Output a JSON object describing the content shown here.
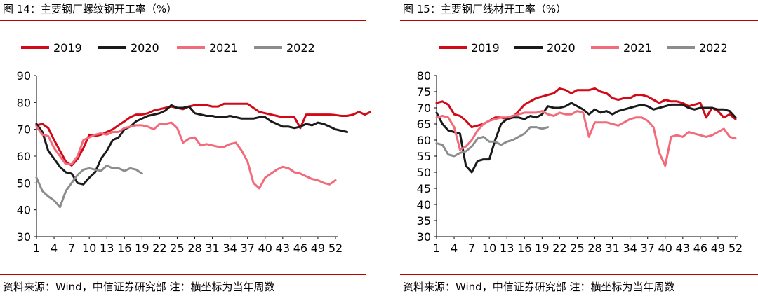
{
  "source_label": "资料来源：Wind，中信证券研究部",
  "note_label": "注：横坐标为当年周数",
  "chart_data": [
    {
      "type": "line",
      "title": "图 14：主要钢厂螺纹钢开工率（%）",
      "xticks": [
        "1",
        "4",
        "7",
        "10",
        "13",
        "16",
        "19",
        "22",
        "25",
        "28",
        "31",
        "34",
        "37",
        "40",
        "43",
        "46",
        "49",
        "52"
      ],
      "xlim": [
        1,
        52
      ],
      "ylim": [
        30,
        90
      ],
      "yticks": [
        30,
        40,
        50,
        60,
        70,
        80,
        90
      ],
      "legend_position": "top",
      "series": [
        {
          "name": "2019",
          "color": "#d20a18",
          "values": [
            71.5,
            72,
            70.5,
            66,
            62,
            58,
            56.5,
            59,
            63,
            68,
            67.5,
            68,
            69,
            70,
            71.5,
            73,
            74.5,
            75.5,
            75.5,
            76,
            77,
            77.5,
            78,
            78.5,
            78,
            77.5,
            78.5,
            79,
            79,
            79,
            78.5,
            78.5,
            79.5,
            79.5,
            79.5,
            79.5,
            79.5,
            78,
            76.5,
            76,
            75.5,
            75,
            74.5,
            74.5,
            74.5,
            70.5,
            75.5,
            75.5,
            75.5,
            75.5,
            75.5,
            75.3,
            75,
            75,
            75.5,
            76.5,
            75.5,
            76.5,
            76,
            75.5,
            74.5,
            74
          ]
        },
        {
          "name": "2020",
          "color": "#1a1a1a",
          "values": [
            72,
            69,
            62,
            59,
            56,
            54,
            53.5,
            50,
            49.5,
            52,
            54,
            59,
            62,
            66,
            67,
            70,
            71,
            73,
            74,
            75,
            75.5,
            76,
            77,
            79,
            78,
            78,
            78.5,
            76,
            75.5,
            75,
            75,
            74.5,
            74.5,
            75,
            74.5,
            74,
            74,
            74,
            74.5,
            74.5,
            73,
            72,
            71,
            71,
            70.5,
            71,
            72,
            71.5,
            72.5,
            72,
            71,
            70,
            69.5,
            69
          ]
        },
        {
          "name": "2021",
          "color": "#f26b7a",
          "values": [
            71,
            68,
            67.5,
            63,
            60,
            57,
            57,
            60,
            66,
            67,
            68,
            68.5,
            68,
            69,
            69,
            70.5,
            71,
            71.5,
            71.5,
            71,
            70,
            72,
            72,
            72.5,
            70.5,
            65,
            66.5,
            67,
            64,
            64.5,
            64,
            63.5,
            63.5,
            64.5,
            65,
            62,
            58,
            50,
            48,
            52,
            53.5,
            55,
            56,
            55.5,
            54,
            53.5,
            52.5,
            51.5,
            51,
            50,
            49.5,
            51
          ]
        },
        {
          "name": "2022",
          "color": "#8c8c8c",
          "values": [
            52,
            47,
            45,
            43.5,
            41,
            47,
            50,
            53,
            55,
            55.5,
            55,
            54.5,
            56.5,
            55.5,
            55.5,
            54.5,
            55.5,
            55,
            53.5
          ]
        }
      ]
    },
    {
      "type": "line",
      "title": "图 15：主要钢厂线材开工率（%）",
      "xticks": [
        "1",
        "4",
        "7",
        "10",
        "13",
        "16",
        "19",
        "22",
        "25",
        "28",
        "31",
        "34",
        "37",
        "40",
        "43",
        "46",
        "49",
        "52"
      ],
      "xlim": [
        1,
        52
      ],
      "ylim": [
        30,
        80
      ],
      "yticks": [
        30,
        35,
        40,
        45,
        50,
        55,
        60,
        65,
        70,
        75,
        80
      ],
      "legend_position": "top",
      "series": [
        {
          "name": "2019",
          "color": "#d20a18",
          "values": [
            71.5,
            72,
            71,
            68,
            67.5,
            66,
            64,
            64.5,
            65,
            66,
            67,
            67,
            66.5,
            67,
            69,
            71,
            72,
            73,
            73.5,
            74,
            74.5,
            76,
            75.5,
            74.5,
            75.5,
            75.5,
            75.5,
            76,
            75,
            74.5,
            73,
            72.5,
            73,
            73,
            74,
            74,
            73.5,
            72.5,
            71.5,
            72.5,
            72,
            72,
            71.5,
            70.5,
            71,
            71.5,
            67,
            70,
            69,
            67,
            68,
            66.5
          ]
        },
        {
          "name": "2020",
          "color": "#1a1a1a",
          "values": [
            68.5,
            65,
            63,
            62.5,
            62,
            52,
            50,
            53.5,
            54,
            54,
            60,
            65,
            66.5,
            67,
            67,
            66.5,
            67.5,
            67,
            68,
            70.5,
            70,
            70,
            70.5,
            71.5,
            70.5,
            69.5,
            68,
            69.5,
            68.5,
            69,
            68,
            69,
            69.5,
            70,
            70.5,
            71,
            70.5,
            69.5,
            70,
            70.5,
            71,
            71,
            71,
            70,
            69.5,
            70,
            70,
            70,
            69.5,
            69.5,
            69,
            67
          ]
        },
        {
          "name": "2021",
          "color": "#f26b7a",
          "values": [
            67,
            67.5,
            67,
            64,
            57,
            58,
            60,
            63,
            65,
            66,
            66.5,
            67,
            67,
            67.5,
            68,
            68.5,
            68.5,
            68.5,
            69,
            68,
            67.5,
            68.5,
            68,
            68,
            69,
            68.5,
            61,
            65.5,
            65.5,
            65.5,
            65,
            64.5,
            65.5,
            66.5,
            67,
            67,
            66,
            64,
            56,
            52,
            61,
            61.5,
            61,
            62.5,
            62,
            61.5,
            61,
            61.5,
            62.5,
            63.5,
            61,
            60.5
          ]
        },
        {
          "name": "2022",
          "color": "#8c8c8c",
          "values": [
            59,
            58.5,
            55.5,
            55,
            56,
            56.5,
            58,
            60.5,
            61,
            59.5,
            59.5,
            58.5,
            59.5,
            60,
            61,
            62,
            64,
            64,
            63.5,
            64
          ]
        }
      ]
    }
  ]
}
